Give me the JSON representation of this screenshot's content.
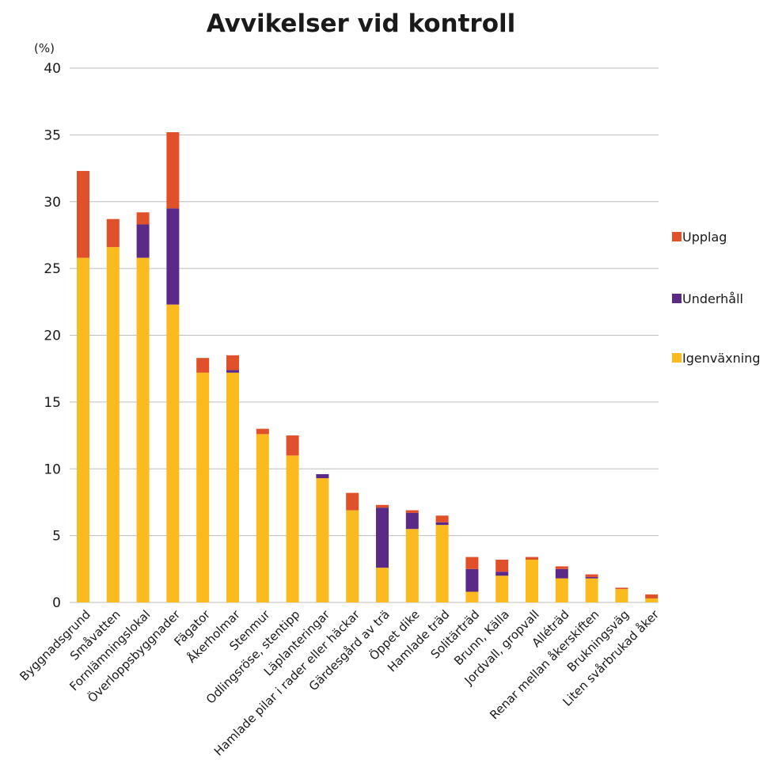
{
  "chart_data": {
    "type": "bar",
    "stacked": true,
    "title": "Avvikelser vid kontroll",
    "y_unit": "(%)",
    "xlabel": "",
    "ylabel": "",
    "ylim": [
      0,
      40
    ],
    "y_ticks": [
      0,
      5,
      10,
      15,
      20,
      25,
      30,
      35,
      40
    ],
    "grid": true,
    "legend_position": "right",
    "categories": [
      "Byggnadsgrund",
      "Småvatten",
      "Fornlämningslokal",
      "Överloppsbyggnader",
      "Fägator",
      "Åkerholmar",
      "Stenmur",
      "Odlingsröse, stentipp",
      "Läplanteringar",
      "Hamlade pilar i rader eller häckar",
      "Gärdesgård av trä",
      "Öppet dike",
      "Hamlade träd",
      "Solitärträd",
      "Brunn, Källa",
      "Jordvall, gropvall",
      "Alléträd",
      "Renar mellan åkerskiften",
      "Brukningsväg",
      "Liten svårbrukad åker"
    ],
    "series": [
      {
        "name": "Igenväxning",
        "color": "#FBBA1E",
        "values": [
          25.8,
          26.6,
          25.8,
          22.3,
          17.2,
          17.2,
          12.6,
          11.0,
          9.3,
          6.9,
          2.6,
          5.5,
          5.8,
          0.8,
          2.0,
          3.2,
          1.8,
          1.8,
          1.0,
          0.3
        ]
      },
      {
        "name": "Underhåll",
        "color": "#5B2A86",
        "values": [
          0.0,
          0.0,
          2.5,
          7.2,
          0.0,
          0.2,
          0.0,
          0.0,
          0.3,
          0.0,
          4.5,
          1.2,
          0.2,
          1.7,
          0.3,
          0.0,
          0.7,
          0.1,
          0.0,
          0.0
        ]
      },
      {
        "name": "Upplag",
        "color": "#E0502A",
        "values": [
          6.5,
          2.1,
          0.9,
          5.7,
          1.1,
          1.1,
          0.4,
          1.5,
          0.0,
          1.3,
          0.2,
          0.2,
          0.5,
          0.9,
          0.9,
          0.2,
          0.2,
          0.2,
          0.1,
          0.3
        ]
      }
    ],
    "legend_order": [
      "Upplag",
      "Underhåll",
      "Igenväxning"
    ]
  }
}
